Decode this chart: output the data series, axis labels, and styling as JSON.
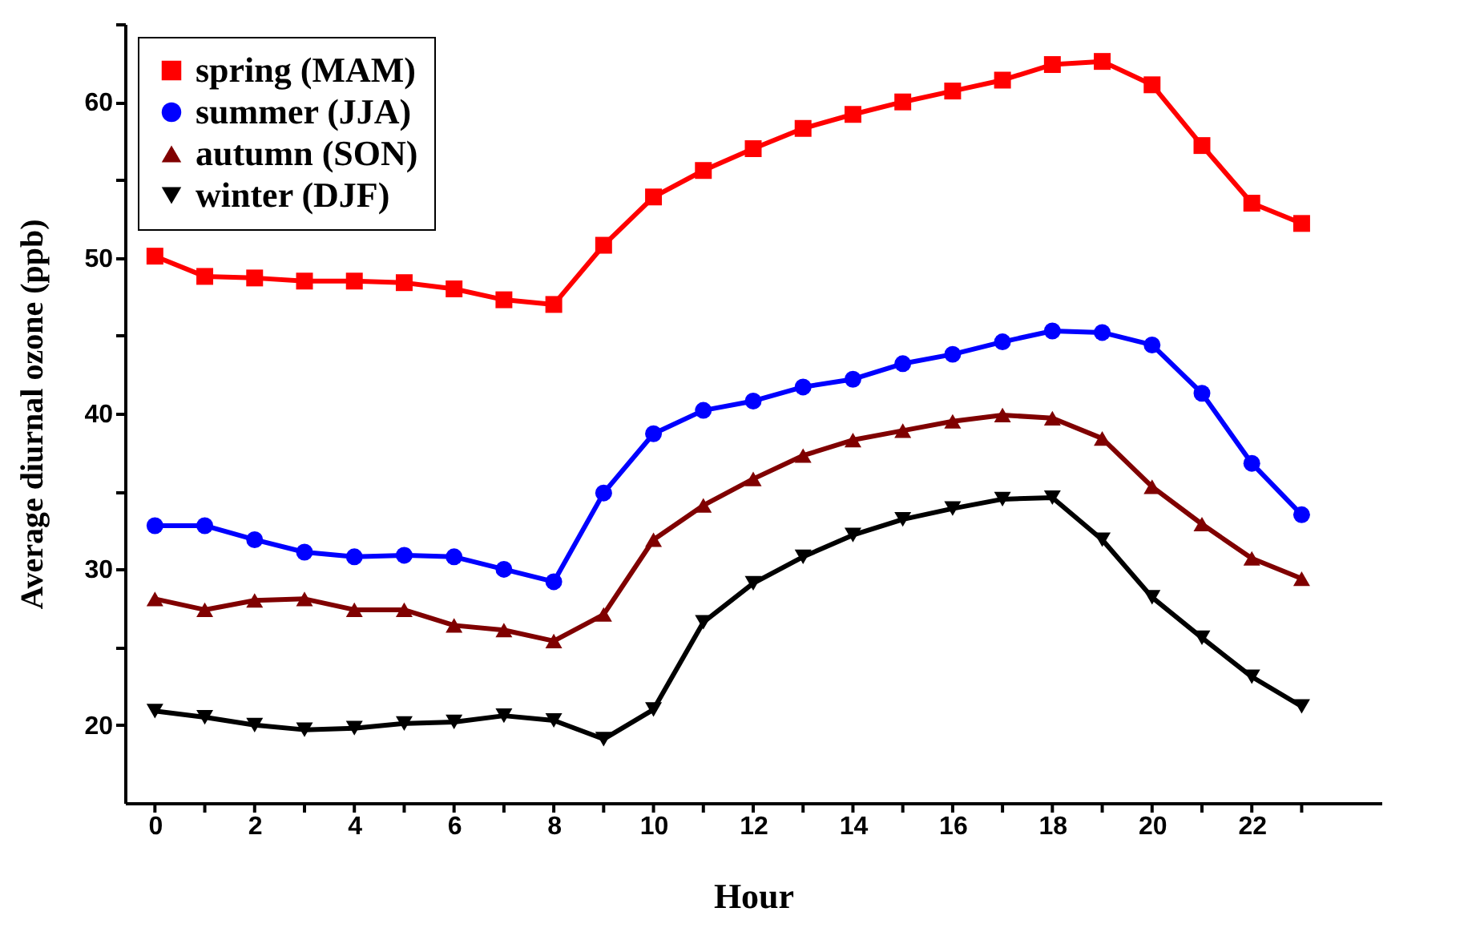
{
  "chart_data": {
    "type": "line",
    "xlabel": "Hour",
    "ylabel": "Average diurnal ozone (ppb)",
    "x": [
      0,
      1,
      2,
      3,
      4,
      5,
      6,
      7,
      8,
      9,
      10,
      11,
      12,
      13,
      14,
      15,
      16,
      17,
      18,
      19,
      20,
      21,
      22,
      23
    ],
    "series": [
      {
        "name": "spring (MAM)",
        "color": "#ff0000",
        "marker": "square",
        "values": [
          50.1,
          48.8,
          48.7,
          48.5,
          48.5,
          48.4,
          48.0,
          47.3,
          47.0,
          50.8,
          53.9,
          55.6,
          57.0,
          58.3,
          59.2,
          60.0,
          60.7,
          61.4,
          62.4,
          62.6,
          61.1,
          57.2,
          53.5,
          52.2
        ]
      },
      {
        "name": "summer (JJA)",
        "color": "#0000ff",
        "marker": "circle",
        "values": [
          32.8,
          32.8,
          31.9,
          31.1,
          30.8,
          30.9,
          30.8,
          30.0,
          29.2,
          34.9,
          38.7,
          40.2,
          40.8,
          41.7,
          42.2,
          43.2,
          43.8,
          44.6,
          45.3,
          45.2,
          44.4,
          41.3,
          36.8,
          33.5
        ]
      },
      {
        "name": "autumn (SON)",
        "color": "#800000",
        "marker": "triangle",
        "values": [
          28.1,
          27.4,
          28.0,
          28.1,
          27.4,
          27.4,
          26.4,
          26.1,
          25.4,
          27.1,
          31.9,
          34.1,
          35.8,
          37.3,
          38.3,
          38.9,
          39.5,
          39.9,
          39.7,
          38.4,
          35.3,
          32.9,
          30.7,
          29.4
        ]
      },
      {
        "name": "winter (DJF)",
        "color": "#000000",
        "marker": "triangle-down",
        "values": [
          20.9,
          20.5,
          20.0,
          19.7,
          19.8,
          20.1,
          20.2,
          20.6,
          20.3,
          19.1,
          21.0,
          26.6,
          29.1,
          30.8,
          32.2,
          33.2,
          33.9,
          34.5,
          34.6,
          31.9,
          28.2,
          25.6,
          23.1,
          21.2
        ]
      }
    ],
    "xlim": [
      -0.6,
      24.6
    ],
    "xticks": [
      0,
      {
        "value": 1,
        "label": null
      },
      2,
      {
        "value": 3,
        "label": null
      },
      4,
      {
        "value": 5,
        "label": null
      },
      6,
      {
        "value": 7,
        "label": null
      },
      8,
      {
        "value": 9,
        "label": null
      },
      10,
      {
        "value": 11,
        "label": null
      },
      12,
      {
        "value": 13,
        "label": null
      },
      14,
      {
        "value": 15,
        "label": null
      },
      16,
      {
        "value": 17,
        "label": null
      },
      18,
      {
        "value": 19,
        "label": null
      },
      20,
      {
        "value": 21,
        "label": null
      },
      22,
      {
        "value": 23,
        "label": null
      }
    ],
    "ylim": [
      15,
      65
    ],
    "yticks": [
      20,
      {
        "value": 25,
        "label": null
      },
      30,
      {
        "value": 35,
        "label": null
      },
      40,
      {
        "value": 45,
        "label": null
      },
      50,
      {
        "value": 55,
        "label": null
      },
      60,
      {
        "value": 65,
        "label": null
      }
    ],
    "legend": "top left",
    "grid": false,
    "line_style": "solid"
  }
}
